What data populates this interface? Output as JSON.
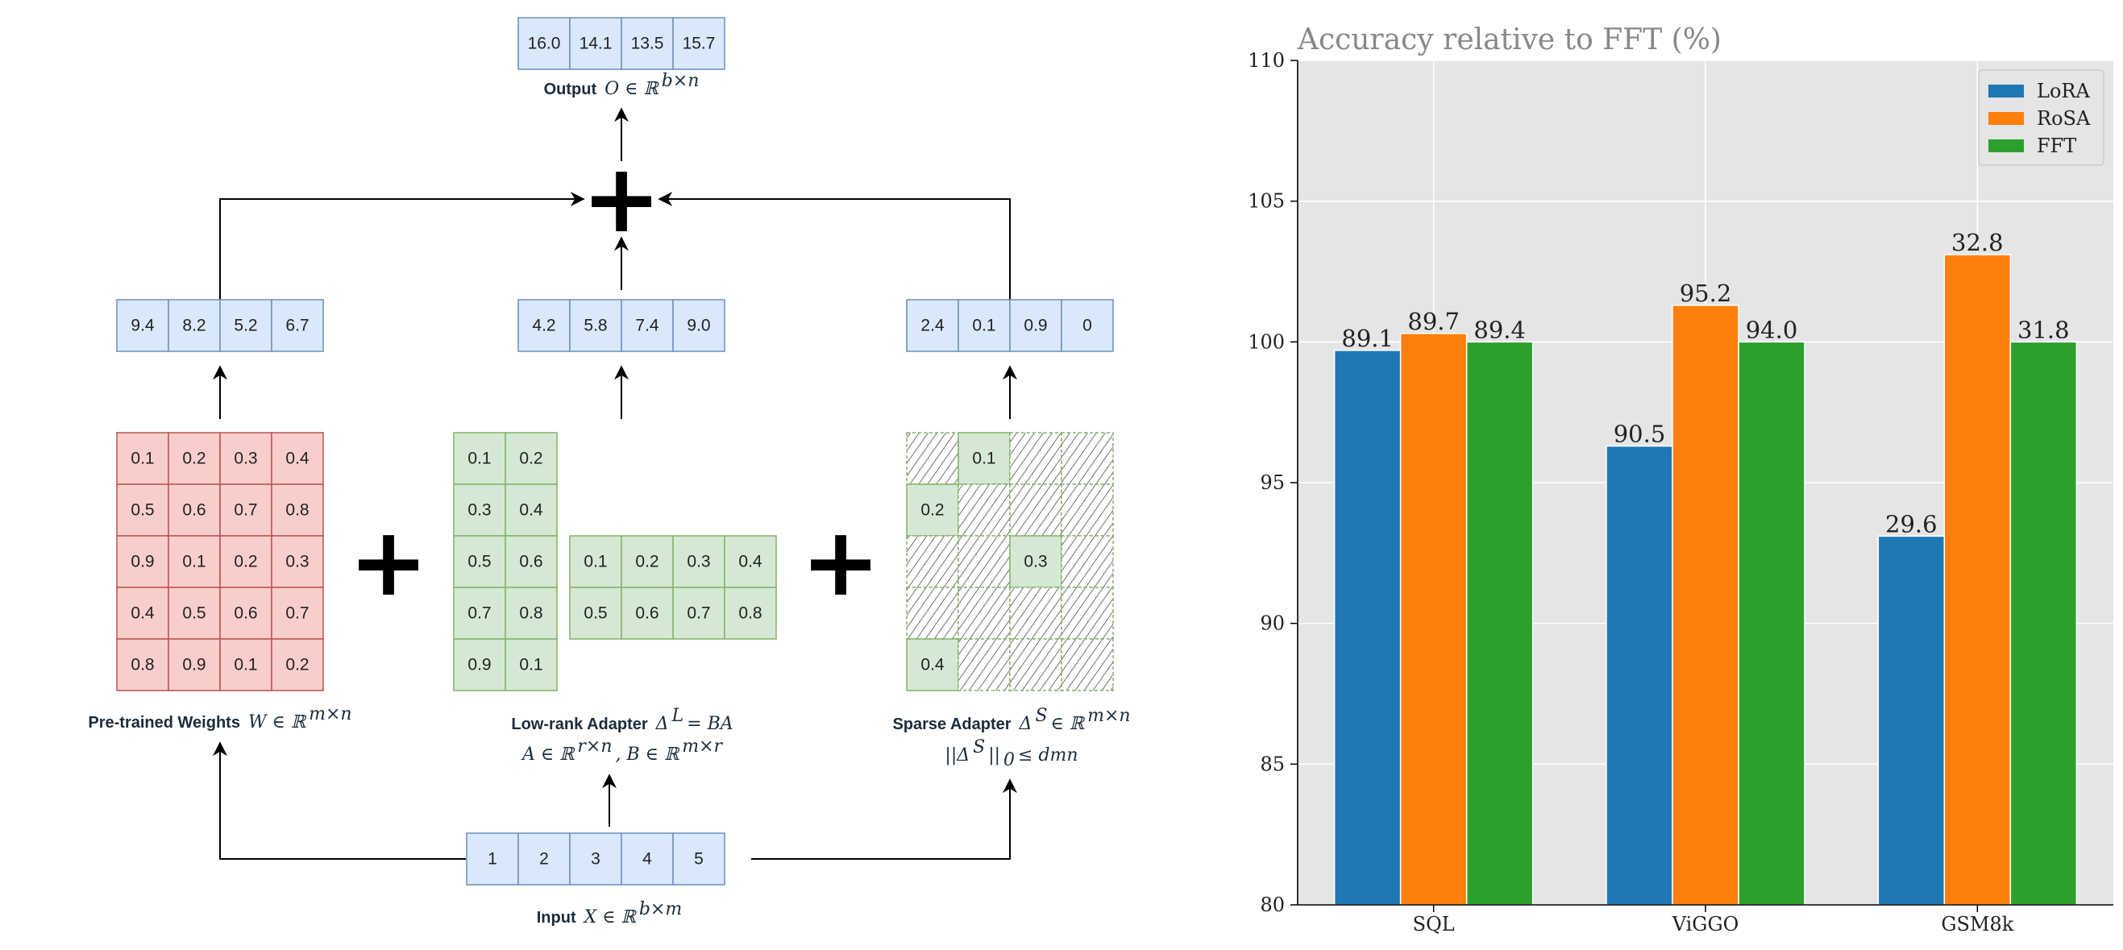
{
  "diagram": {
    "output_vector": [
      "16.0",
      "14.1",
      "13.5",
      "15.7"
    ],
    "output_label": {
      "bold": "Output",
      "math": "O ∈ ℝ"
    },
    "output_sup": "b×n",
    "plus_symbol": "+",
    "pretrained_result": [
      "9.4",
      "8.2",
      "5.2",
      "6.7"
    ],
    "lowrank_result": [
      "4.2",
      "5.8",
      "7.4",
      "9.0"
    ],
    "sparse_result": [
      "2.4",
      "0.1",
      "0.9",
      "0"
    ],
    "pretrained_matrix": [
      [
        "0.1",
        "0.2",
        "0.3",
        "0.4"
      ],
      [
        "0.5",
        "0.6",
        "0.7",
        "0.8"
      ],
      [
        "0.9",
        "0.1",
        "0.2",
        "0.3"
      ],
      [
        "0.4",
        "0.5",
        "0.6",
        "0.7"
      ],
      [
        "0.8",
        "0.9",
        "0.1",
        "0.2"
      ]
    ],
    "lowrank_b": [
      [
        "0.1",
        "0.2"
      ],
      [
        "0.3",
        "0.4"
      ],
      [
        "0.5",
        "0.6"
      ],
      [
        "0.7",
        "0.8"
      ],
      [
        "0.9",
        "0.1"
      ]
    ],
    "lowrank_a": [
      [
        "0.1",
        "0.2",
        "0.3",
        "0.4"
      ],
      [
        "0.5",
        "0.6",
        "0.7",
        "0.8"
      ]
    ],
    "sparse_nonzero": [
      {
        "row": 0,
        "col": 1,
        "value": "0.1"
      },
      {
        "row": 1,
        "col": 0,
        "value": "0.2"
      },
      {
        "row": 2,
        "col": 2,
        "value": "0.3"
      },
      {
        "row": 4,
        "col": 0,
        "value": "0.4"
      }
    ],
    "input_vector": [
      "1",
      "2",
      "3",
      "4",
      "5"
    ],
    "pretrained_label": {
      "bold": "Pre-trained Weights",
      "math": "W ∈ ℝ",
      "sup": "m×n"
    },
    "lowrank_label": {
      "bold": "Low-rank Adapter",
      "math": "Δ",
      "sup": "L",
      "math2": " = BA"
    },
    "lowrank_sublabel": {
      "a": "A ∈ ℝ",
      "a_sup": "r×n",
      "b": ", B ∈ ℝ",
      "b_sup": "m×r"
    },
    "sparse_label": {
      "bold": "Sparse Adapter",
      "math": "Δ",
      "sup": "S",
      "math2": " ∈ ℝ",
      "sup2": "m×n"
    },
    "sparse_sublabel": {
      "a": "||Δ",
      "a_sup": "S",
      "b": "||",
      "b_sub": "0",
      "c": " ≤ dmn"
    },
    "input_label": {
      "bold": "Input",
      "math": "X ∈ ℝ",
      "sup": "b×m"
    },
    "colors": {
      "vector_fill": "#dae8fc",
      "vector_stroke": "#6c8ebf",
      "pretrained_fill": "#f8cecc",
      "pretrained_stroke": "#b85450",
      "adapter_fill": "#d5e8d4",
      "adapter_stroke": "#82b366"
    }
  },
  "chart_data": {
    "type": "bar",
    "title": "Accuracy relative to FFT (%)",
    "categories": [
      "SQL",
      "ViGGO",
      "GSM8k"
    ],
    "series": [
      {
        "name": "LoRA",
        "color": "#1f77b4",
        "values": [
          99.7,
          96.3,
          93.1
        ],
        "labels": [
          "89.1",
          "90.5",
          "29.6"
        ]
      },
      {
        "name": "RoSA",
        "color": "#ff7f0e",
        "values": [
          100.3,
          101.3,
          103.1
        ],
        "labels": [
          "89.7",
          "95.2",
          "32.8"
        ]
      },
      {
        "name": "FFT",
        "color": "#2ca02c",
        "values": [
          100.0,
          100.0,
          100.0
        ],
        "labels": [
          "89.4",
          "94.0",
          "31.8"
        ]
      }
    ],
    "ylim": [
      80,
      110
    ],
    "yticks": [
      "80",
      "85",
      "90",
      "95",
      "100",
      "105",
      "110"
    ],
    "xlabel": "",
    "ylabel": "",
    "grid": true,
    "legend": "top-right",
    "background": "#e5e5e5"
  }
}
